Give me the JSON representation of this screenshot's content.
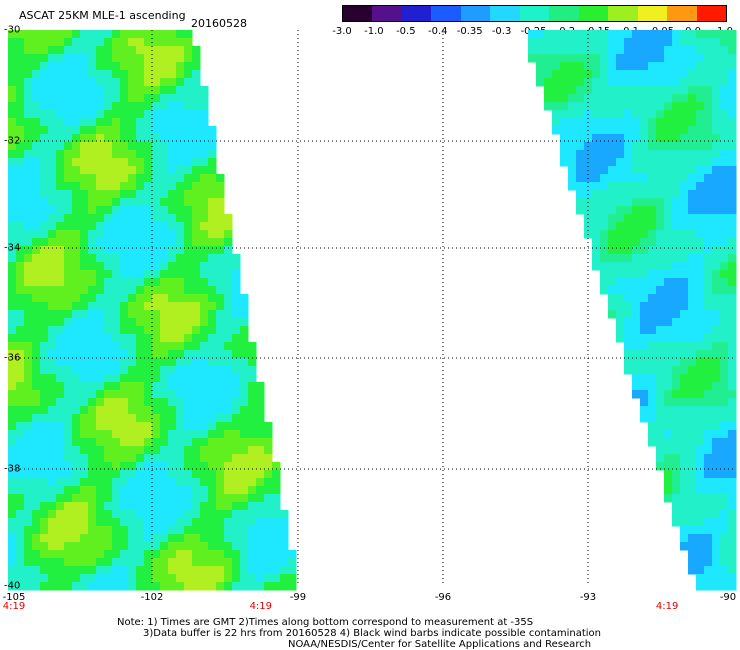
{
  "header": {
    "title": "ASCAT 25KM MLE-1 ascending",
    "date": "20160528"
  },
  "colorbar": {
    "labels": [
      "-3.0",
      "-1.0",
      "-0.5",
      "-0.4",
      "-0.35",
      "-0.3",
      "-0.25",
      "-0.2",
      "-0.15",
      "-0.1",
      "-0.05",
      "0.0",
      "1.0"
    ],
    "colors": [
      "#2a0030",
      "#55118c",
      "#2020d0",
      "#1a5cff",
      "#1e9cff",
      "#22d8ff",
      "#1ef2c8",
      "#20ee80",
      "#28f030",
      "#9cf020",
      "#f0f020",
      "#ff9a10",
      "#ff1a00"
    ]
  },
  "map": {
    "lat_ticks": [
      "-30",
      "-32",
      "-34",
      "-36",
      "-38",
      "-40"
    ],
    "lon_ticks": [
      "-105",
      "-102",
      "-99",
      "-96",
      "-93",
      "-90"
    ],
    "lon_range": [
      -105,
      -90
    ],
    "lat_range": [
      -30,
      -40
    ],
    "swath_times": [
      {
        "label": "4:19",
        "lon": -105
      },
      {
        "label": "4:19",
        "lon": -99
      },
      {
        "label": "4:19",
        "lon": -91.4
      }
    ],
    "swaths": [
      {
        "name": "west",
        "value_note": "MLE-1 field"
      },
      {
        "name": "east",
        "value_note": "MLE-1 field"
      }
    ]
  },
  "notes": {
    "line1": "Note: 1) Times are GMT 2)Times along bottom correspond to measurement at -35S",
    "line2": "3)Data buffer is 22 hrs from 20160528 4) Black wind barbs indicate possible contamination",
    "line3": "NOAA/NESDIS/Center for Satellite Applications and Research"
  }
}
